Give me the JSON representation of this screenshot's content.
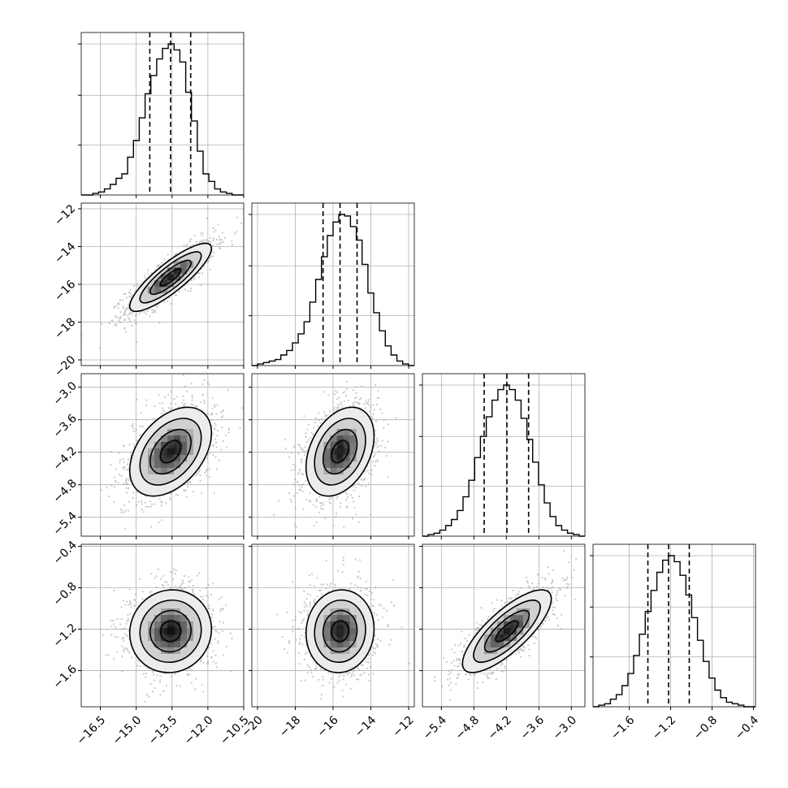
{
  "chart_data": {
    "type": "corner",
    "parameters": [
      {
        "range": [
          -17.3,
          -10.5
        ],
        "ticks": [
          -16.5,
          -15.0,
          -13.5,
          -12.0,
          -10.5
        ],
        "tick_labels": [
          "−16.5",
          "−15.0",
          "−13.5",
          "−12.0",
          "−10.5"
        ],
        "quantiles": [
          -14.43,
          -13.56,
          -12.72
        ],
        "hist": [
          0.0,
          0.0,
          0.01,
          0.02,
          0.04,
          0.07,
          0.11,
          0.14,
          0.25,
          0.36,
          0.51,
          0.67,
          0.79,
          0.9,
          0.97,
          1.0,
          0.96,
          0.88,
          0.68,
          0.49,
          0.29,
          0.14,
          0.09,
          0.04,
          0.02,
          0.01,
          0.0,
          0.0
        ]
      },
      {
        "range": [
          -20.3,
          -11.7
        ],
        "ticks": [
          -20,
          -18,
          -16,
          -14,
          -12
        ],
        "tick_labels": [
          "−20",
          "−18",
          "−16",
          "−14",
          "−12"
        ],
        "quantiles": [
          -16.53,
          -15.63,
          -14.73
        ],
        "hist": [
          0.0,
          0.01,
          0.02,
          0.03,
          0.04,
          0.07,
          0.1,
          0.15,
          0.21,
          0.29,
          0.42,
          0.57,
          0.72,
          0.86,
          0.95,
          1.0,
          0.99,
          0.92,
          0.83,
          0.67,
          0.48,
          0.35,
          0.23,
          0.13,
          0.07,
          0.03,
          0.01,
          0.0
        ]
      },
      {
        "range": [
          -5.75,
          -2.75
        ],
        "ticks": [
          -5.4,
          -4.8,
          -4.2,
          -3.6,
          -3.0
        ],
        "tick_labels": [
          "−5.4",
          "−4.8",
          "−4.2",
          "−3.6",
          "−3.0"
        ],
        "quantiles": [
          -4.61,
          -4.19,
          -3.79
        ],
        "hist": [
          0.0,
          0.01,
          0.02,
          0.04,
          0.07,
          0.11,
          0.17,
          0.26,
          0.37,
          0.52,
          0.66,
          0.79,
          0.9,
          0.97,
          1.0,
          0.97,
          0.9,
          0.78,
          0.64,
          0.49,
          0.34,
          0.22,
          0.13,
          0.07,
          0.04,
          0.02,
          0.01,
          0.0
        ]
      },
      {
        "range": [
          -1.95,
          -0.38
        ],
        "ticks": [
          -1.6,
          -1.2,
          -0.8,
          -0.4
        ],
        "tick_labels": [
          "−1.6",
          "−1.2",
          "−0.8",
          "−0.4"
        ],
        "quantiles": [
          -1.42,
          -1.22,
          -1.02
        ],
        "hist": [
          0.0,
          0.01,
          0.02,
          0.05,
          0.08,
          0.14,
          0.22,
          0.34,
          0.48,
          0.63,
          0.77,
          0.89,
          0.97,
          1.0,
          0.96,
          0.87,
          0.74,
          0.59,
          0.44,
          0.3,
          0.19,
          0.11,
          0.06,
          0.03,
          0.02,
          0.01,
          0.0,
          0.0
        ]
      }
    ],
    "correlations": [
      [
        1.0,
        0.85,
        0.42,
        0.05
      ],
      [
        0.85,
        1.0,
        0.35,
        0.05
      ],
      [
        0.42,
        0.35,
        1.0,
        0.78
      ],
      [
        0.05,
        0.05,
        0.78,
        1.0
      ]
    ],
    "contour_levels": [
      "0.5 sigma",
      "1 sigma",
      "1.5 sigma",
      "2 sigma"
    ],
    "grid": true,
    "quantile_line_style": "dashed"
  }
}
